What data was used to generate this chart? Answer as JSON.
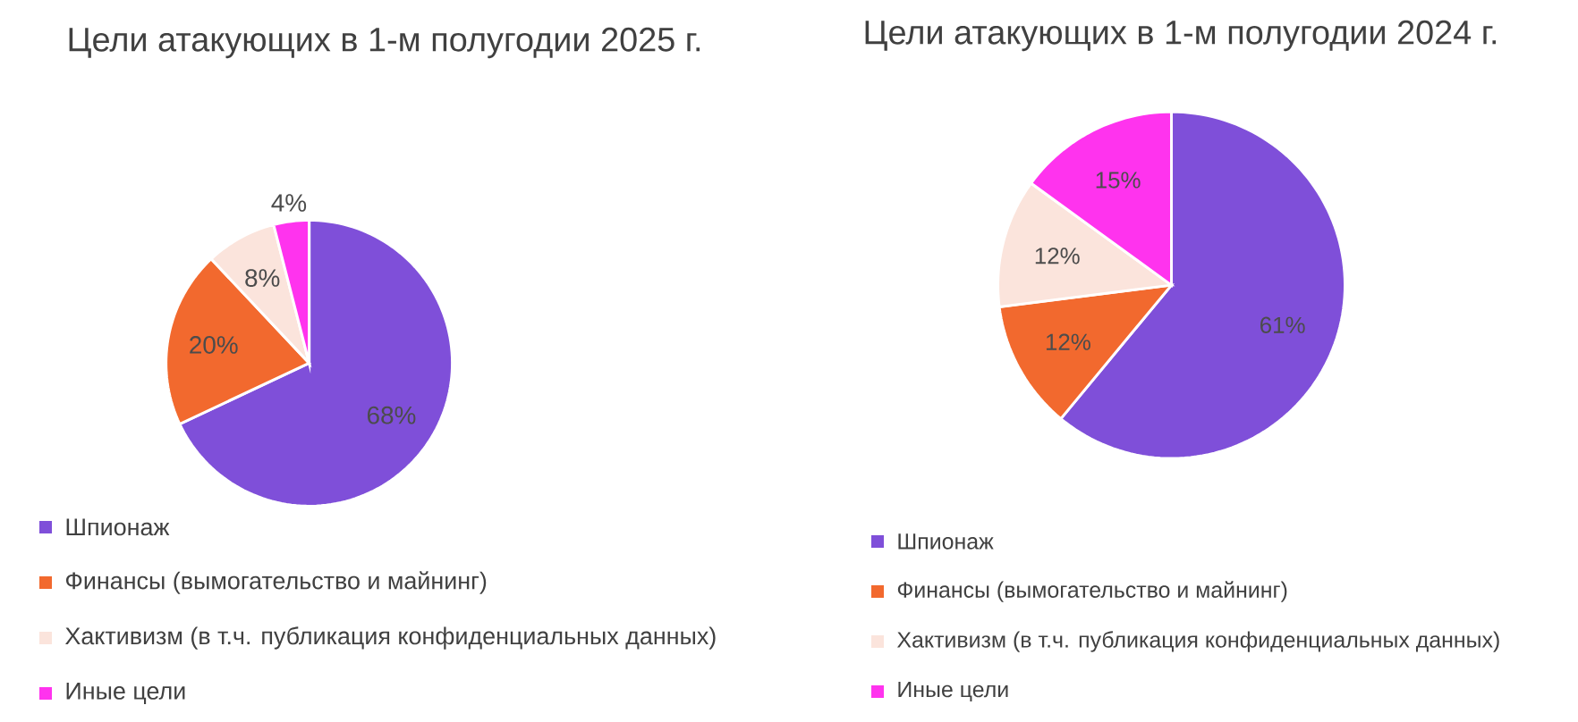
{
  "chart_data": [
    {
      "type": "pie",
      "title": "Цели атакующих в 1-м полугодии 2025 г.",
      "categories": [
        "Шпионаж",
        "Финансы (вымогательство и майнинг)",
        "Хактивизм (в т.ч. публикация конфиденциальных данных)",
        "Иные цели"
      ],
      "values": [
        68,
        20,
        8,
        4
      ],
      "value_labels": [
        "68%",
        "20%",
        "8%",
        "4%"
      ],
      "colors": [
        "#7f4fd9",
        "#f2692e",
        "#fbe4dc",
        "#ff33ee"
      ],
      "legend": "bottom"
    },
    {
      "type": "pie",
      "title": "Цели атакующих в 1-м полугодии 2024 г.",
      "categories": [
        "Шпионаж",
        "Финансы (вымогательство и майнинг)",
        "Хактивизм (в т.ч. публикация конфиденциальных данных)",
        "Иные цели"
      ],
      "values": [
        61,
        12,
        12,
        15
      ],
      "value_labels": [
        "61%",
        "12%",
        "12%",
        "15%"
      ],
      "colors": [
        "#7f4fd9",
        "#f2692e",
        "#fbe4dc",
        "#ff33ee"
      ],
      "legend": "bottom"
    }
  ]
}
